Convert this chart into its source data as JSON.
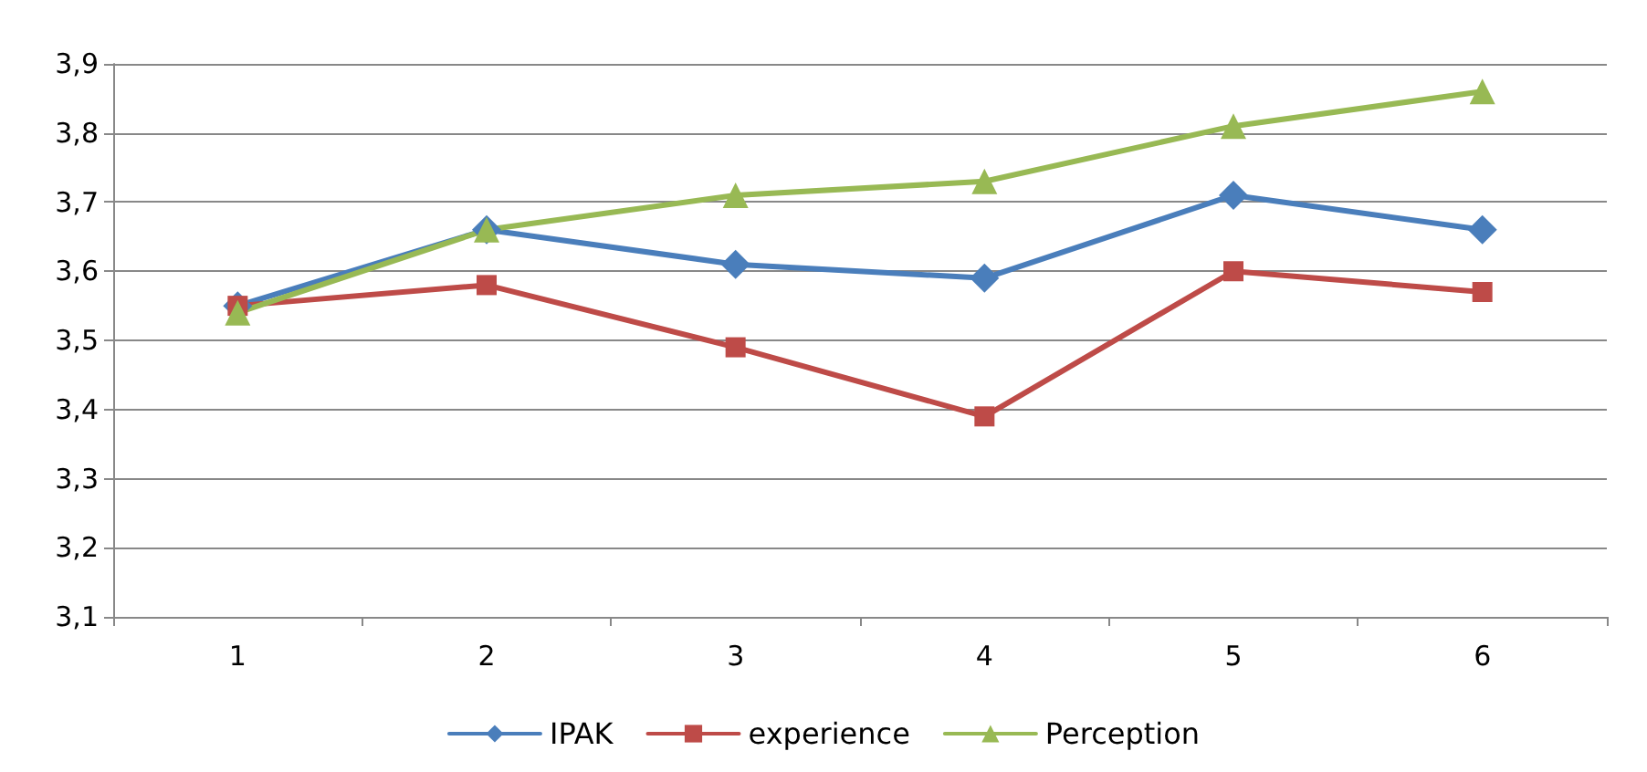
{
  "chart_data": {
    "type": "line",
    "categories": [
      "1",
      "2",
      "3",
      "4",
      "5",
      "6"
    ],
    "series": [
      {
        "name": "IPAK",
        "color": "#4a7ebb",
        "marker": "diamond",
        "values": [
          3.55,
          3.66,
          3.61,
          3.59,
          3.71,
          3.66
        ]
      },
      {
        "name": "experience",
        "color": "#be4b48",
        "marker": "square",
        "values": [
          3.55,
          3.58,
          3.49,
          3.39,
          3.6,
          3.57
        ]
      },
      {
        "name": "Perception",
        "color": "#98b954",
        "marker": "triangle",
        "values": [
          3.54,
          3.66,
          3.71,
          3.73,
          3.81,
          3.86
        ]
      }
    ],
    "ylim": [
      3.1,
      3.9
    ],
    "yticks": [
      {
        "value": 3.1,
        "label": "3,1"
      },
      {
        "value": 3.2,
        "label": "3,2"
      },
      {
        "value": 3.3,
        "label": "3,3"
      },
      {
        "value": 3.4,
        "label": "3,4"
      },
      {
        "value": 3.5,
        "label": "3,5"
      },
      {
        "value": 3.6,
        "label": "3,6"
      },
      {
        "value": 3.7,
        "label": "3,7"
      },
      {
        "value": 3.8,
        "label": "3,8"
      },
      {
        "value": 3.9,
        "label": "3,9"
      }
    ],
    "grid": "y",
    "legend": "bottom",
    "line_style": "solid"
  }
}
